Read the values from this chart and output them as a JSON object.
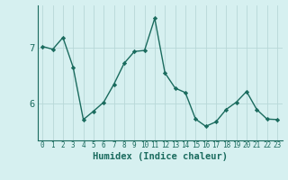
{
  "x": [
    0,
    1,
    2,
    3,
    4,
    5,
    6,
    7,
    8,
    9,
    10,
    11,
    12,
    13,
    14,
    15,
    16,
    17,
    18,
    19,
    20,
    21,
    22,
    23
  ],
  "y": [
    7.02,
    6.97,
    7.18,
    6.65,
    5.72,
    5.87,
    6.03,
    6.35,
    6.72,
    6.93,
    6.95,
    7.52,
    6.55,
    6.28,
    6.2,
    5.73,
    5.6,
    5.68,
    5.9,
    6.03,
    6.22,
    5.9,
    5.73,
    5.72
  ],
  "line_color": "#1a6b5e",
  "marker": "D",
  "marker_size": 2.2,
  "bg_color": "#d6f0f0",
  "grid_color": "#b8d8d8",
  "xlabel": "Humidex (Indice chaleur)",
  "xlabel_fontsize": 7.5,
  "ytick_labels": [
    "6",
    "7"
  ],
  "ytick_values": [
    6.0,
    7.0
  ],
  "ylim": [
    5.35,
    7.75
  ],
  "xlim": [
    -0.5,
    23.5
  ],
  "tick_color": "#1a6b5e",
  "xtick_fontsize": 5.5,
  "ytick_fontsize": 7.5,
  "linewidth": 1.0,
  "spine_color": "#1a6b5e"
}
